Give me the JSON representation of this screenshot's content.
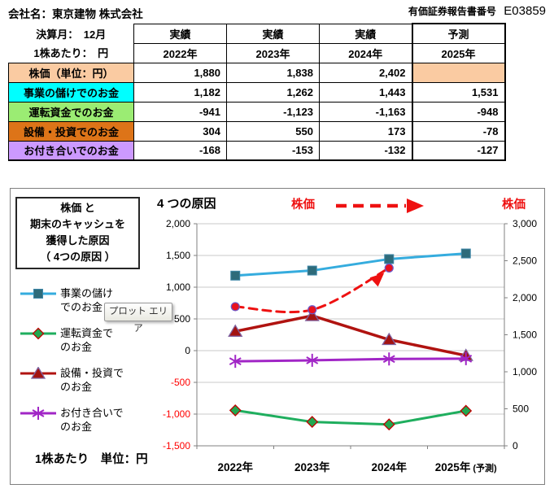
{
  "header": {
    "company_label": "会社名：東京建物 株式会社",
    "report_label": "有価証券報告書番号",
    "report_number": "E03859"
  },
  "table": {
    "meta_row1": "決算月：　12月",
    "meta_row2": "1株あたり：　円",
    "col_headers": [
      {
        "type": "実績",
        "year": "2022年"
      },
      {
        "type": "実績",
        "year": "2023年"
      },
      {
        "type": "実績",
        "year": "2024年"
      },
      {
        "type": "予測",
        "year": "2025年"
      }
    ],
    "rows": [
      {
        "label": "株価（単位：円）",
        "color": "#FACBA2",
        "values": [
          "1,880",
          "1,838",
          "2,402",
          ""
        ]
      },
      {
        "label": "事業の儲けでのお金",
        "color": "#00FFFF",
        "values": [
          "1,182",
          "1,262",
          "1,443",
          "1,531"
        ]
      },
      {
        "label": "運転資金でのお金",
        "color": "#9BEC73",
        "values": [
          "-941",
          "-1,123",
          "-1,163",
          "-948"
        ]
      },
      {
        "label": "設備・投資でのお金",
        "color": "#DD7418",
        "values": [
          "304",
          "550",
          "173",
          "-78"
        ]
      },
      {
        "label": "お付き合いでのお金",
        "color": "#CC99FF",
        "values": [
          "-168",
          "-153",
          "-132",
          "-127"
        ]
      }
    ],
    "negative_color": "#FF0000"
  },
  "chart": {
    "title_lines": [
      "株価 と",
      "期末のキャッシュを",
      "獲得した原因",
      "（ 4つの原因 ）"
    ],
    "caption": "4 つの原因",
    "stock_label_left": "株価",
    "stock_label_right": "株価",
    "unit_note": "1株あたり　単位：円",
    "tooltip": "プロット エリア",
    "arrow_color": "#EE1111"
  },
  "chart_data": {
    "type": "line",
    "categories": [
      "2022年",
      "2023年",
      "2024年",
      "2025年"
    ],
    "category_suffixes": [
      "",
      "",
      "",
      "(予測)"
    ],
    "left_axis": {
      "min": -1500,
      "max": 2000,
      "step": 500
    },
    "right_axis": {
      "min": 0,
      "max": 3000,
      "step": 500
    },
    "grid": true,
    "legend_position": "left",
    "series": [
      {
        "name": "事業の儲けでのお金",
        "axis": "left",
        "values": [
          1182,
          1262,
          1443,
          1531
        ],
        "color": "#35ACDE",
        "width": 3,
        "marker": "square",
        "marker_color": "#2E6B7A",
        "marker_border": "#3E87A8"
      },
      {
        "name": "運転資金でのお金",
        "axis": "left",
        "values": [
          -941,
          -1123,
          -1163,
          -948
        ],
        "color": "#1FAE5E",
        "width": 3,
        "marker": "diamond",
        "marker_color": "#21A74F",
        "marker_border": "#C00000"
      },
      {
        "name": "設備・投資でのお金",
        "axis": "left",
        "values": [
          304,
          550,
          173,
          -78
        ],
        "color": "#B01310",
        "width": 3.5,
        "marker": "triangle",
        "marker_color": "#A31311",
        "marker_border": "#8064A2"
      },
      {
        "name": "お付き合いでのお金",
        "axis": "left",
        "values": [
          -168,
          -153,
          -132,
          -127
        ],
        "color": "#A126C6",
        "width": 3,
        "marker": "asterisk"
      },
      {
        "name": "株価",
        "axis": "right",
        "values": [
          1880,
          1838,
          2402,
          null
        ],
        "color": "#EE1111",
        "width": 3,
        "dashed": true,
        "smooth": true,
        "arrow_end": true,
        "marker": "circle",
        "marker_color": "#E8121F",
        "marker_border": "#6A5ACD"
      }
    ],
    "legend": [
      {
        "series": 0,
        "line1": "事業の儲け",
        "line2": "でのお金"
      },
      {
        "series": 1,
        "line1": "運転資金で",
        "line2": "のお金"
      },
      {
        "series": 2,
        "line1": "設備・投資で",
        "line2": "のお金"
      },
      {
        "series": 3,
        "line1": "お付き合いで",
        "line2": "のお金"
      }
    ]
  }
}
